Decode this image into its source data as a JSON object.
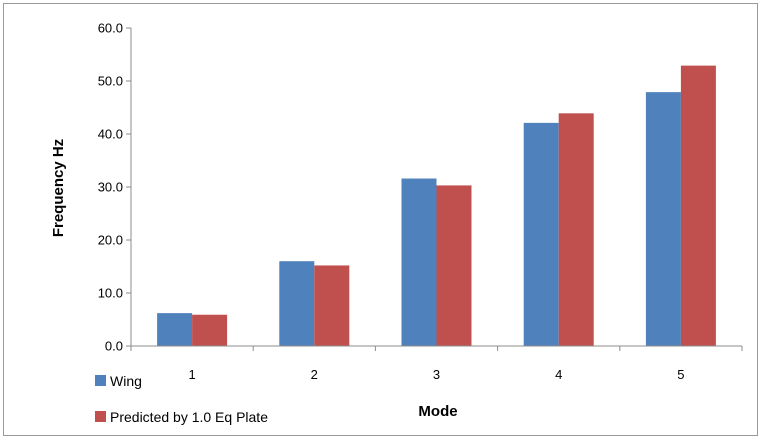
{
  "chart_data": {
    "type": "bar",
    "categories": [
      "1",
      "2",
      "3",
      "4",
      "5"
    ],
    "series": [
      {
        "name": "Wing",
        "values": [
          6.2,
          16.0,
          31.6,
          42.1,
          47.9
        ],
        "color": "#4f81bd"
      },
      {
        "name": "Predicted by 1.0 Eq Plate",
        "values": [
          5.9,
          15.2,
          30.3,
          43.9,
          52.9
        ],
        "color": "#c0504d"
      }
    ],
    "xlabel": "Mode",
    "ylabel": "Frequency Hz",
    "ylim": [
      0,
      60
    ],
    "yticks": [
      "0.0",
      "10.0",
      "20.0",
      "30.0",
      "40.0",
      "50.0",
      "60.0"
    ],
    "grid": false,
    "legend_position": "bottom-left"
  }
}
